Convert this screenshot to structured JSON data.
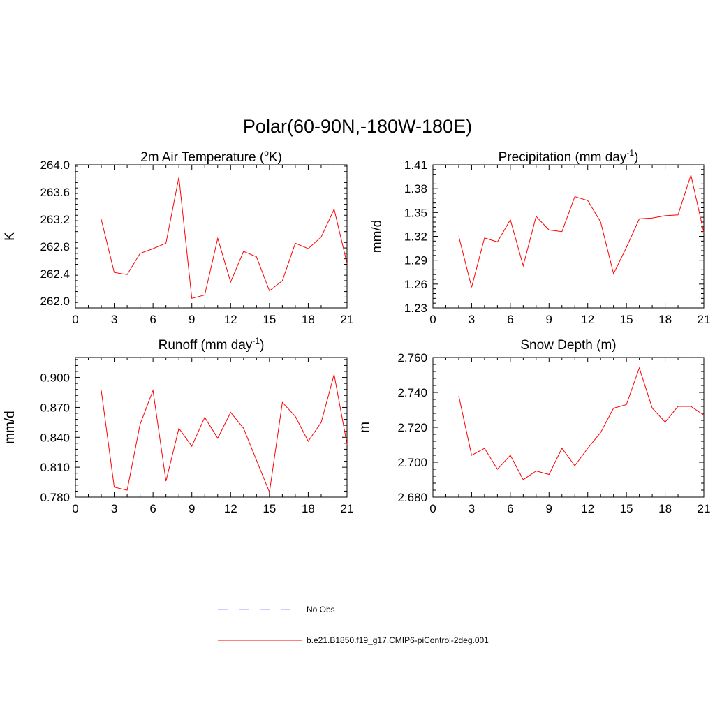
{
  "figure_title": "Polar(60-90N,-180W-180E)",
  "legend": [
    {
      "label": "No Obs",
      "color": "#9999ff",
      "style": "dashed"
    },
    {
      "label": "b.e21.B1850.f19_g17.CMIP6-piControl-2deg.001",
      "color": "#ff0000",
      "style": "solid"
    }
  ],
  "chart_data": [
    {
      "type": "line",
      "title_main": "2m Air Temperature (",
      "title_sup": "o",
      "title_end": "K)",
      "ylabel": "K",
      "xlim": [
        0,
        21
      ],
      "ylim": [
        261.9,
        264.0
      ],
      "xticks": [
        0,
        3,
        6,
        9,
        12,
        15,
        18,
        21
      ],
      "yticks": [
        262.0,
        262.4,
        262.8,
        263.2,
        263.6,
        264.0
      ],
      "ytick_labels": [
        "262.0",
        "262.4",
        "262.8",
        "263.2",
        "263.6",
        "264.0"
      ],
      "xtick_labels": [
        "0",
        "3",
        "6",
        "9",
        "12",
        "15",
        "18",
        "21"
      ],
      "series": [
        {
          "name": "b.e21.B1850.f19_g17.CMIP6-piControl-2deg.001",
          "color": "#ff0000",
          "x": [
            2,
            3,
            4,
            5,
            6,
            7,
            8,
            9,
            10,
            11,
            12,
            13,
            14,
            15,
            16,
            17,
            18,
            19,
            20,
            21
          ],
          "y": [
            263.2,
            262.42,
            262.39,
            262.7,
            262.77,
            262.85,
            263.82,
            262.04,
            262.09,
            262.92,
            262.28,
            262.73,
            262.65,
            262.15,
            262.3,
            262.85,
            262.77,
            262.94,
            263.35,
            262.55
          ]
        }
      ]
    },
    {
      "type": "line",
      "title_main": "Precipitation (mm day",
      "title_sup": "-1",
      "title_end": ")",
      "ylabel": "mm/d",
      "xlim": [
        0,
        21
      ],
      "ylim": [
        1.23,
        1.41
      ],
      "xticks": [
        0,
        3,
        6,
        9,
        12,
        15,
        18,
        21
      ],
      "yticks": [
        1.23,
        1.26,
        1.29,
        1.32,
        1.35,
        1.38,
        1.41
      ],
      "ytick_labels": [
        "1.23",
        "1.26",
        "1.29",
        "1.32",
        "1.35",
        "1.38",
        "1.41"
      ],
      "xtick_labels": [
        "0",
        "3",
        "6",
        "9",
        "12",
        "15",
        "18",
        "21"
      ],
      "series": [
        {
          "name": "b.e21.B1850.f19_g17.CMIP6-piControl-2deg.001",
          "color": "#ff0000",
          "x": [
            2,
            3,
            4,
            5,
            6,
            7,
            8,
            9,
            10,
            11,
            12,
            13,
            14,
            15,
            16,
            17,
            18,
            19,
            20,
            21
          ],
          "y": [
            1.32,
            1.256,
            1.318,
            1.313,
            1.341,
            1.283,
            1.345,
            1.328,
            1.326,
            1.37,
            1.365,
            1.338,
            1.273,
            1.306,
            1.342,
            1.343,
            1.346,
            1.347,
            1.397,
            1.325
          ]
        }
      ]
    },
    {
      "type": "line",
      "title_main": "Runoff (mm day",
      "title_sup": "-1",
      "title_end": ")",
      "ylabel": "mm/d",
      "xlim": [
        0,
        21
      ],
      "ylim": [
        0.78,
        0.92
      ],
      "xticks": [
        0,
        3,
        6,
        9,
        12,
        15,
        18,
        21
      ],
      "yticks": [
        0.78,
        0.81,
        0.84,
        0.87,
        0.9
      ],
      "ytick_labels": [
        "0.780",
        "0.810",
        "0.840",
        "0.870",
        "0.900"
      ],
      "xtick_labels": [
        "0",
        "3",
        "6",
        "9",
        "12",
        "15",
        "18",
        "21"
      ],
      "series": [
        {
          "name": "b.e21.B1850.f19_g17.CMIP6-piControl-2deg.001",
          "color": "#ff0000",
          "x": [
            2,
            3,
            4,
            5,
            6,
            7,
            8,
            9,
            10,
            11,
            12,
            13,
            14,
            15,
            16,
            17,
            18,
            19,
            20,
            21
          ],
          "y": [
            0.887,
            0.79,
            0.787,
            0.853,
            0.887,
            0.796,
            0.849,
            0.831,
            0.86,
            0.839,
            0.865,
            0.849,
            0.817,
            0.785,
            0.875,
            0.861,
            0.836,
            0.855,
            0.903,
            0.833
          ]
        }
      ]
    },
    {
      "type": "line",
      "title_main": "Snow Depth (m)",
      "title_sup": "",
      "title_end": "",
      "ylabel": "m",
      "xlim": [
        0,
        21
      ],
      "ylim": [
        2.68,
        2.76
      ],
      "xticks": [
        0,
        3,
        6,
        9,
        12,
        15,
        18,
        21
      ],
      "yticks": [
        2.68,
        2.7,
        2.72,
        2.74,
        2.76
      ],
      "ytick_labels": [
        "2.680",
        "2.700",
        "2.720",
        "2.740",
        "2.760"
      ],
      "xtick_labels": [
        "0",
        "3",
        "6",
        "9",
        "12",
        "15",
        "18",
        "21"
      ],
      "series": [
        {
          "name": "b.e21.B1850.f19_g17.CMIP6-piControl-2deg.001",
          "color": "#ff0000",
          "x": [
            2,
            3,
            4,
            5,
            6,
            7,
            8,
            9,
            10,
            11,
            12,
            13,
            14,
            15,
            16,
            17,
            18,
            19,
            20,
            21
          ],
          "y": [
            2.738,
            2.704,
            2.708,
            2.696,
            2.704,
            2.69,
            2.695,
            2.693,
            2.708,
            2.698,
            2.708,
            2.717,
            2.731,
            2.733,
            2.754,
            2.731,
            2.723,
            2.732,
            2.732,
            2.727
          ]
        }
      ]
    }
  ]
}
